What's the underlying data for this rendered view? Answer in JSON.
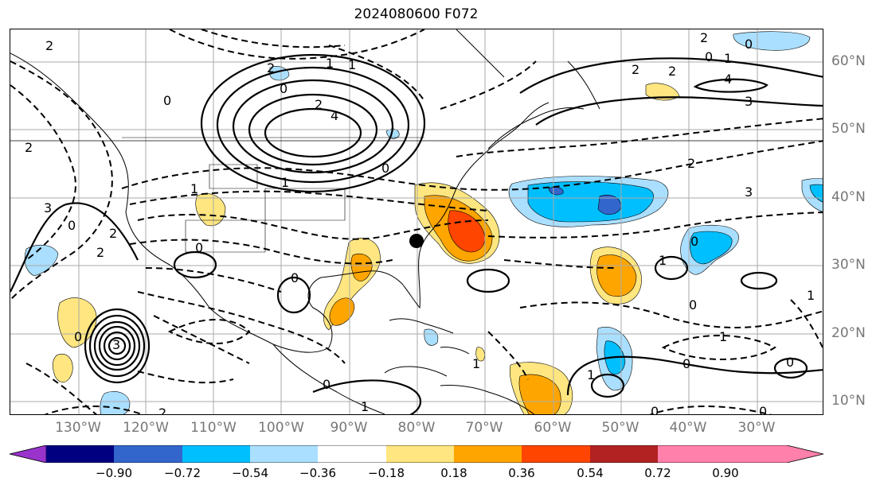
{
  "title": "2024080600 F072",
  "lon_labels": [
    "130°W",
    "120°W",
    "110°W",
    "100°W",
    "90°W",
    "80°W",
    "70°W",
    "60°W",
    "50°W",
    "40°W",
    "30°W"
  ],
  "lat_labels": [
    "60°N",
    "50°N",
    "40°N",
    "30°N",
    "20°N",
    "10°N"
  ],
  "colorbar": {
    "ticks": [
      "−0.90",
      "−0.72",
      "−0.54",
      "−0.36",
      "−0.18",
      "0.18",
      "0.36",
      "0.54",
      "0.72",
      "0.90"
    ],
    "colors": [
      "#9933cc",
      "#000080",
      "#3366cc",
      "#00bfff",
      "#aadfff",
      "#ffffff",
      "#ffe680",
      "#ffa500",
      "#ff4500",
      "#b22222",
      "#ff80aa"
    ]
  },
  "contour_labels": [
    "2",
    "0",
    "1",
    "2",
    "2",
    "0",
    "1",
    "4",
    "3",
    "0",
    "2",
    "4",
    "2",
    "1",
    "0",
    "2",
    "2",
    "3",
    "2",
    "1",
    "0",
    "2",
    "3",
    "2",
    "0",
    "1",
    "3",
    "0",
    "0",
    "1",
    "2",
    "1",
    "0",
    "1",
    "0",
    "0",
    "1",
    "0",
    "1",
    "0",
    "1",
    "0",
    "0",
    "0"
  ],
  "marker": "storm-center-dot"
}
